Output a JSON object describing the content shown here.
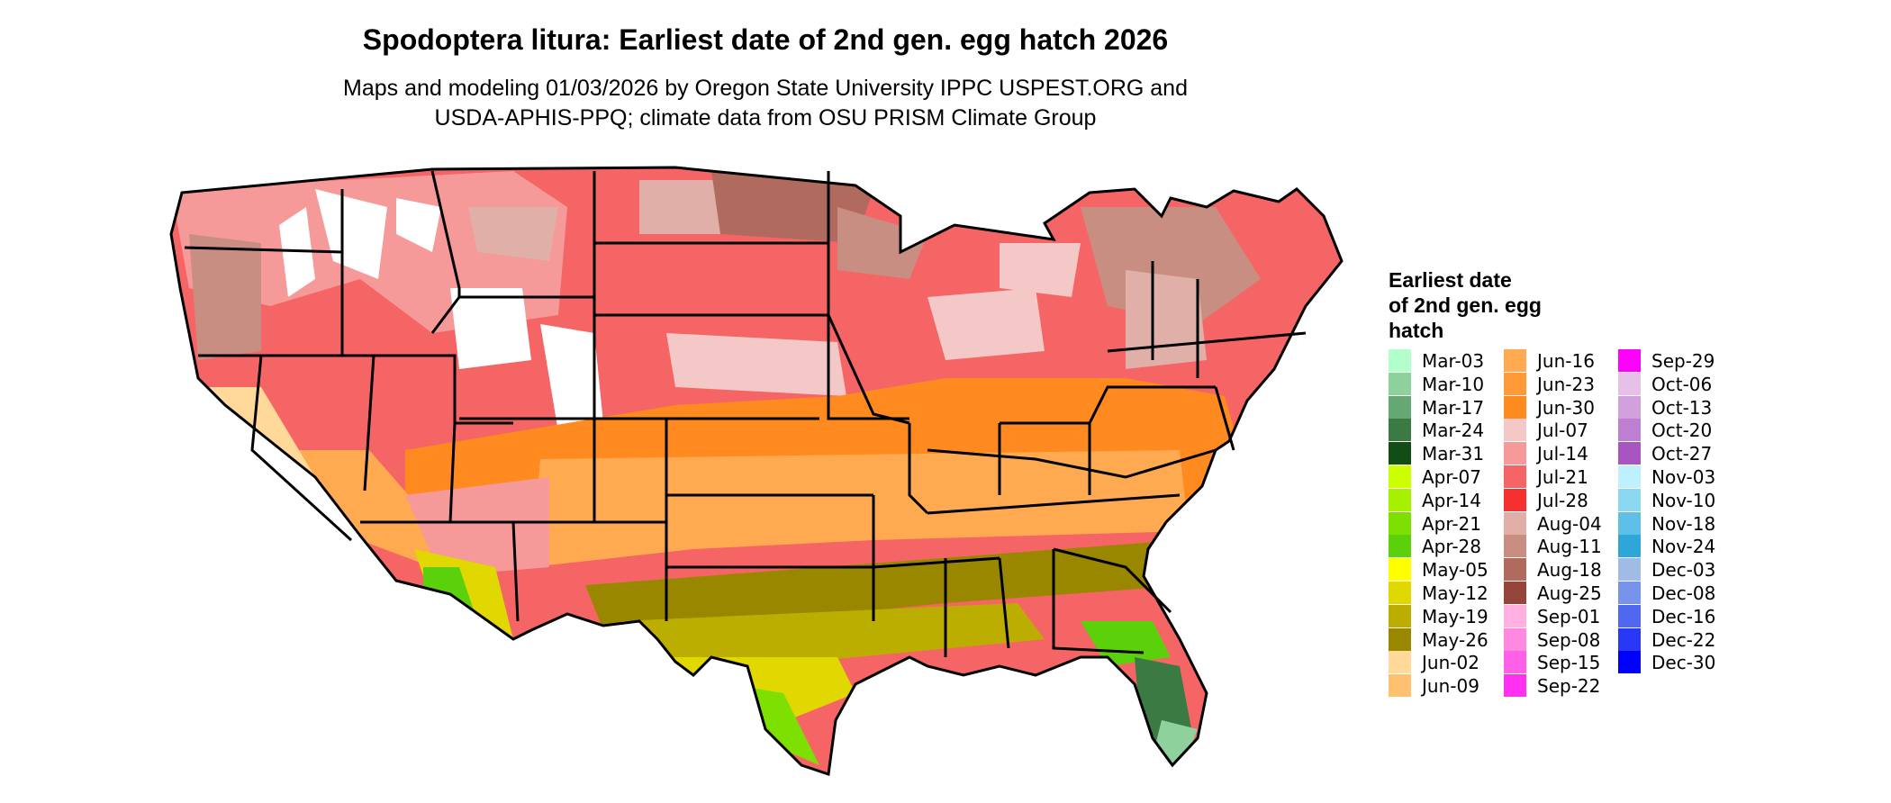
{
  "title": "Spodoptera litura: Earliest date of 2nd gen. egg hatch 2026",
  "subtitle_line1": "Maps and modeling 01/03/2026 by Oregon State University IPPC USPEST.ORG and",
  "subtitle_line2": "USDA-APHIS-PPQ; climate data from OSU PRISM Climate Group",
  "legend": {
    "title_lines": [
      "Earliest date",
      "of 2nd gen. egg",
      "hatch"
    ],
    "columns": [
      [
        {
          "label": "Mar-03",
          "color": "#b3ffcc"
        },
        {
          "label": "Mar-10",
          "color": "#8ed19c"
        },
        {
          "label": "Mar-17",
          "color": "#65a873"
        },
        {
          "label": "Mar-24",
          "color": "#3c7a44"
        },
        {
          "label": "Mar-31",
          "color": "#124d16"
        },
        {
          "label": "Apr-07",
          "color": "#ccff00"
        },
        {
          "label": "Apr-14",
          "color": "#a6f000"
        },
        {
          "label": "Apr-21",
          "color": "#7ee000"
        },
        {
          "label": "Apr-28",
          "color": "#5ad10a"
        },
        {
          "label": "May-05",
          "color": "#ffff00"
        },
        {
          "label": "May-12",
          "color": "#e0d800"
        },
        {
          "label": "May-19",
          "color": "#bcae00"
        },
        {
          "label": "May-26",
          "color": "#9a8700"
        },
        {
          "label": "Jun-02",
          "color": "#ffd89a"
        },
        {
          "label": "Jun-09",
          "color": "#ffc070"
        }
      ],
      [
        {
          "label": "Jun-16",
          "color": "#ffaa50"
        },
        {
          "label": "Jun-23",
          "color": "#ff9a38"
        },
        {
          "label": "Jun-30",
          "color": "#ff8a20"
        },
        {
          "label": "Jul-07",
          "color": "#f5c8c8"
        },
        {
          "label": "Jul-14",
          "color": "#f59999"
        },
        {
          "label": "Jul-21",
          "color": "#f56565"
        },
        {
          "label": "Jul-28",
          "color": "#f53030"
        },
        {
          "label": "Aug-04",
          "color": "#e0b0a8"
        },
        {
          "label": "Aug-11",
          "color": "#c98e82"
        },
        {
          "label": "Aug-18",
          "color": "#b06a5e"
        },
        {
          "label": "Aug-25",
          "color": "#96453a"
        },
        {
          "label": "Sep-01",
          "color": "#ffb0e0"
        },
        {
          "label": "Sep-08",
          "color": "#ff88e0"
        },
        {
          "label": "Sep-15",
          "color": "#ff60e8"
        },
        {
          "label": "Sep-22",
          "color": "#ff30f0"
        }
      ],
      [
        {
          "label": "Sep-29",
          "color": "#ff00ff"
        },
        {
          "label": "Oct-06",
          "color": "#e6c0e6"
        },
        {
          "label": "Oct-13",
          "color": "#d2a0dc"
        },
        {
          "label": "Oct-20",
          "color": "#be7ed2"
        },
        {
          "label": "Oct-27",
          "color": "#a855c2"
        },
        {
          "label": "Nov-03",
          "color": "#bff0ff"
        },
        {
          "label": "Nov-10",
          "color": "#8cd7f0"
        },
        {
          "label": "Nov-18",
          "color": "#5ec0e8"
        },
        {
          "label": "Nov-24",
          "color": "#2ea6d8"
        },
        {
          "label": "Dec-03",
          "color": "#a0bce6"
        },
        {
          "label": "Dec-08",
          "color": "#7894ea"
        },
        {
          "label": "Dec-16",
          "color": "#5068f0"
        },
        {
          "label": "Dec-22",
          "color": "#2838f6"
        },
        {
          "label": "Dec-30",
          "color": "#0000ff"
        }
      ]
    ]
  }
}
